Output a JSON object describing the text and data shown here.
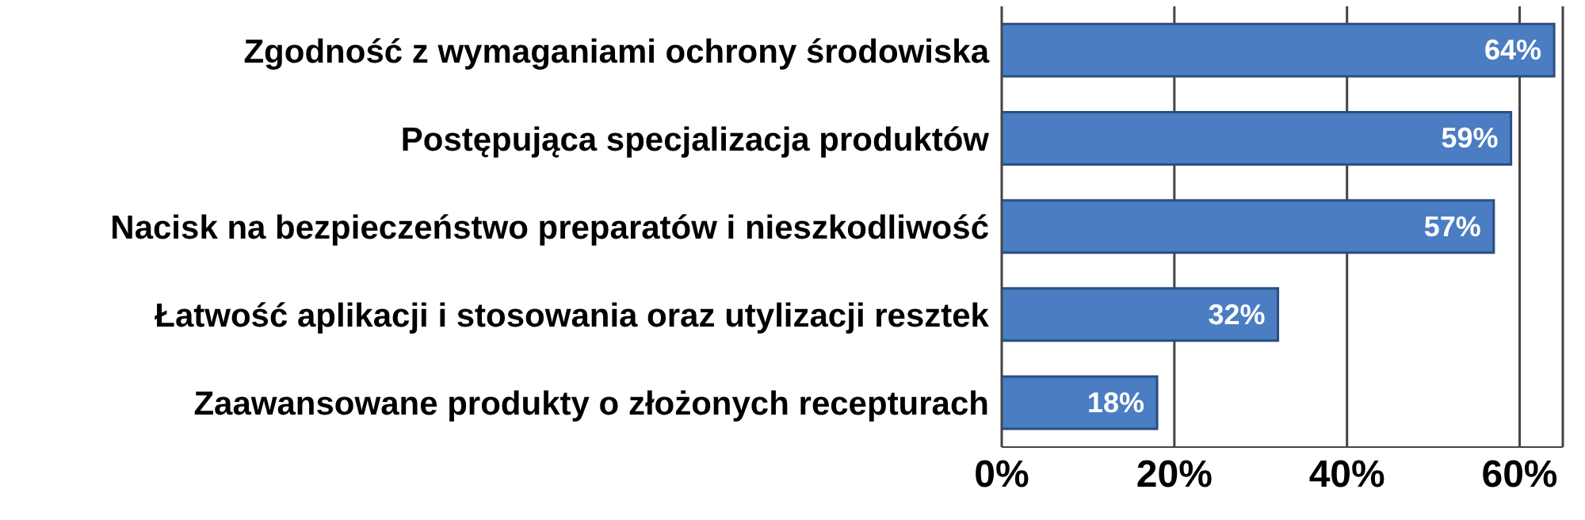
{
  "chart_data": {
    "type": "bar",
    "orientation": "horizontal",
    "categories": [
      "Zgodność z wymaganiami ochrony środowiska",
      "Postępująca specjalizacja produktów",
      "Nacisk na bezpieczeństwo preparatów i nieszkodliwość",
      "Łatwość aplikacji i stosowania oraz utylizacji resztek",
      "Zaawansowane produkty o złożonych recepturach"
    ],
    "values": [
      64,
      59,
      57,
      32,
      18
    ],
    "value_labels": [
      "64%",
      "59%",
      "57%",
      "32%",
      "18%"
    ],
    "color": "#4a7dc2",
    "xlim": [
      0,
      65
    ],
    "xticks": [
      {
        "value": 0,
        "label": "0%"
      },
      {
        "value": 20,
        "label": "20%"
      },
      {
        "value": 40,
        "label": "40%"
      },
      {
        "value": 60,
        "label": "60%"
      }
    ],
    "grid": "x"
  }
}
